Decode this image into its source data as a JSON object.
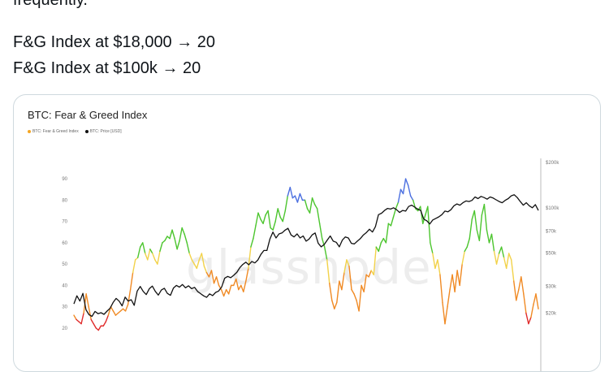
{
  "tweet": {
    "cut_text": "frequently.",
    "line1": "F&G Index at $18,000 → 20",
    "line2": "F&G Index at $100k → 20"
  },
  "chart_data": {
    "type": "line",
    "title": "BTC: Fear & Greed Index",
    "watermark": "glassnode",
    "legend": [
      {
        "name": "BTC: Fear & Greed Index",
        "color": "#f5a623"
      },
      {
        "name": "BTC: Price [USD]",
        "color": "#111111"
      }
    ],
    "y_left": {
      "ticks": [
        90,
        80,
        70,
        60,
        50,
        40,
        30,
        20
      ],
      "range": [
        15,
        95
      ]
    },
    "y_right": {
      "ticks": [
        "$200k",
        "$100k",
        "$70k",
        "$50k",
        "$30k",
        "$20k"
      ],
      "log": true
    },
    "fg_color_bands": {
      "extreme_fear": "#e02b2b",
      "fear": "#f08a24",
      "neutral": "#f2d24a",
      "greed": "#4cc52e",
      "extreme_greed": "#4b6fe0"
    },
    "series": [
      {
        "name": "BTC: Fear & Greed Index",
        "values": [
          26,
          24,
          23,
          22,
          27,
          36,
          30,
          24,
          22,
          20,
          19,
          21,
          21,
          23,
          26,
          30,
          28,
          26,
          27,
          28,
          29,
          28,
          31,
          38,
          46,
          52,
          53,
          58,
          60,
          55,
          52,
          57,
          55,
          52,
          50,
          56,
          60,
          61,
          63,
          62,
          66,
          62,
          57,
          61,
          67,
          64,
          60,
          55,
          52,
          50,
          48,
          52,
          55,
          49,
          46,
          44,
          47,
          41,
          44,
          40,
          38,
          35,
          38,
          36,
          40,
          40,
          43,
          38,
          40,
          37,
          42,
          48,
          58,
          62,
          68,
          74,
          71,
          69,
          73,
          75,
          67,
          66,
          70,
          76,
          72,
          70,
          75,
          82,
          86,
          81,
          82,
          79,
          83,
          80,
          80,
          76,
          74,
          81,
          78,
          76,
          69,
          62,
          58,
          52,
          41,
          33,
          29,
          32,
          42,
          38,
          46,
          52,
          49,
          38,
          36,
          33,
          28,
          40,
          37,
          45,
          44,
          47,
          45,
          58,
          56,
          60,
          62,
          60,
          69,
          68,
          72,
          76,
          79,
          85,
          83,
          90,
          87,
          82,
          80,
          76,
          75,
          77,
          69,
          73,
          77,
          60,
          55,
          48,
          52,
          45,
          32,
          22,
          30,
          38,
          45,
          37,
          47,
          40,
          50,
          56,
          58,
          62,
          71,
          75,
          66,
          61,
          73,
          78,
          66,
          60,
          64,
          56,
          50,
          55,
          58,
          53,
          48,
          55,
          52,
          42,
          33,
          38,
          44,
          36,
          27,
          22,
          25,
          31,
          36,
          29
        ]
      },
      {
        "name": "BTC: Price [USD]",
        "values": [
          23000,
          26000,
          24000,
          27000,
          21000,
          19500,
          19000,
          20500,
          19800,
          20100,
          19600,
          20600,
          21500,
          23500,
          25000,
          24000,
          22300,
          25500,
          24000,
          24500,
          22500,
          28000,
          30000,
          27800,
          26500,
          29000,
          30200,
          27800,
          26300,
          28400,
          29200,
          27000,
          26200,
          29300,
          30500,
          29700,
          30900,
          29400,
          30300,
          29000,
          29600,
          27800,
          26900,
          26000,
          25400,
          26800,
          26100,
          27400,
          28000,
          29800,
          34000,
          35000,
          34300,
          35600,
          37200,
          40000,
          42000,
          43500,
          41800,
          44000,
          43000,
          45000,
          49000,
          52000,
          52000,
          62000,
          69000,
          63000,
          67000,
          68000,
          71000,
          73000,
          66000,
          64000,
          67000,
          63000,
          65000,
          60000,
          62000,
          66000,
          68000,
          58000,
          55000,
          57000,
          61000,
          65000,
          60000,
          59000,
          55000,
          61000,
          64000,
          63000,
          58000,
          57500,
          60000,
          62500,
          66000,
          68500,
          72000,
          69000,
          75000,
          90000,
          92000,
          96000,
          99000,
          98000,
          100000,
          97000,
          93000,
          96000,
          95000,
          102000,
          104000,
          101000,
          98000,
          96000,
          84000,
          82000,
          78000,
          83000,
          85000,
          87000,
          90000,
          95000,
          94000,
          97000,
          103000,
          106000,
          104000,
          108000,
          111000,
          110000,
          112000,
          118000,
          115000,
          119000,
          117000,
          114000,
          118000,
          116000,
          113000,
          110000,
          108000,
          112000,
          115000,
          120000,
          122000,
          117000,
          110000,
          104000,
          108000,
          103000,
          100000,
          105000,
          96000
        ]
      }
    ]
  }
}
